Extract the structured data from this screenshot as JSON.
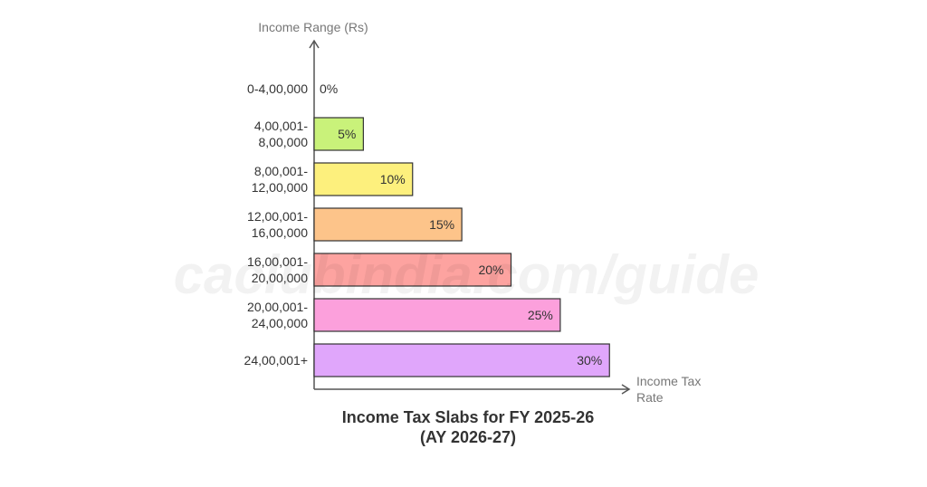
{
  "chart_data": {
    "type": "bar",
    "orientation": "horizontal",
    "title": "Income Tax Slabs for FY 2025-26\n(AY 2026-27)",
    "y_label": "Income Range (Rs)",
    "x_label": "Income Tax\nRate",
    "watermark": "caclubindia.com/guide",
    "categories": [
      "0-4,00,000",
      "4,00,001-\n8,00,000",
      "8,00,001-\n12,00,000",
      "12,00,001-\n16,00,000",
      "16,00,001-\n20,00,000",
      "20,00,001-\n24,00,000",
      "24,00,001+"
    ],
    "values": [
      0,
      5,
      10,
      15,
      20,
      25,
      30
    ],
    "value_labels": [
      "0%",
      "5%",
      "10%",
      "15%",
      "20%",
      "25%",
      "30%"
    ],
    "colors": [
      "#d0f28a",
      "#c9f27a",
      "#fdf07d",
      "#fdc48a",
      "#fda3a0",
      "#fca0dc",
      "#e0a6fb"
    ],
    "xlim": [
      0,
      32
    ]
  }
}
